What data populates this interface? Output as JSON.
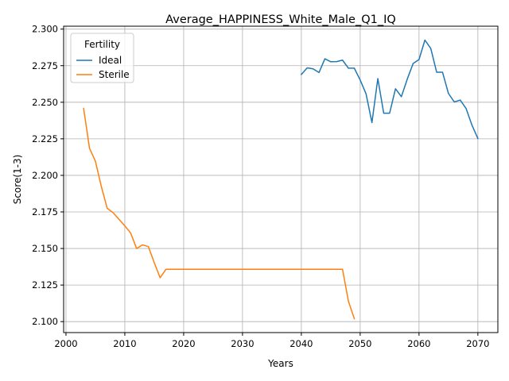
{
  "chart_data": {
    "type": "line",
    "title": "Average_HAPPINESS_White_Male_Q1_IQ",
    "xlabel": "Years",
    "ylabel": "Score(1-3)",
    "xlim": [
      1999.6,
      2073.4
    ],
    "ylim": [
      2.0925,
      2.302
    ],
    "xticks": [
      2000,
      2010,
      2020,
      2030,
      2040,
      2050,
      2060,
      2070
    ],
    "xtick_labels": [
      "2000",
      "2010",
      "2020",
      "2030",
      "2040",
      "2050",
      "2060",
      "2070"
    ],
    "yticks": [
      2.1,
      2.125,
      2.15,
      2.175,
      2.2,
      2.225,
      2.25,
      2.275,
      2.3
    ],
    "ytick_labels": [
      "2.100",
      "2.125",
      "2.150",
      "2.175",
      "2.200",
      "2.225",
      "2.250",
      "2.275",
      "2.300"
    ],
    "grid": true,
    "legend": {
      "title": "Fertility",
      "placement": "upper left"
    },
    "series": [
      {
        "name": "Ideal",
        "color": "#1f77b4",
        "x": [
          2040,
          2041,
          2042,
          2043,
          2044,
          2045,
          2046,
          2047,
          2048,
          2049,
          2050,
          2051,
          2052,
          2053,
          2054,
          2055,
          2056,
          2057,
          2058,
          2059,
          2060,
          2061,
          2062,
          2063,
          2064,
          2065,
          2066,
          2067,
          2068,
          2069,
          2070
        ],
        "y": [
          2.269,
          2.2735,
          2.2728,
          2.2703,
          2.2797,
          2.2777,
          2.2778,
          2.2788,
          2.2733,
          2.2733,
          2.2652,
          2.2557,
          2.2361,
          2.2662,
          2.2425,
          2.2425,
          2.2592,
          2.2538,
          2.2658,
          2.2765,
          2.2792,
          2.2925,
          2.2868,
          2.2705,
          2.2705,
          2.256,
          2.2502,
          2.2515,
          2.2457,
          2.2343,
          2.2252
        ]
      },
      {
        "name": "Sterile",
        "color": "#ff7f0e",
        "x": [
          2003,
          2004,
          2005,
          2006,
          2007,
          2008,
          2009,
          2010,
          2011,
          2012,
          2013,
          2014,
          2015,
          2016,
          2017,
          2018,
          2019,
          2020,
          2025,
          2030,
          2035,
          2040,
          2045,
          2046,
          2047,
          2048,
          2049
        ],
        "y": [
          2.2458,
          2.2185,
          2.2097,
          2.1925,
          2.1775,
          2.1745,
          2.17,
          2.1655,
          2.1605,
          2.15,
          2.1525,
          2.1513,
          2.1403,
          2.13,
          2.1358,
          2.1358,
          2.1358,
          2.1358,
          2.1358,
          2.1358,
          2.1358,
          2.1358,
          2.1358,
          2.1358,
          2.1358,
          2.114,
          2.102
        ]
      }
    ]
  }
}
